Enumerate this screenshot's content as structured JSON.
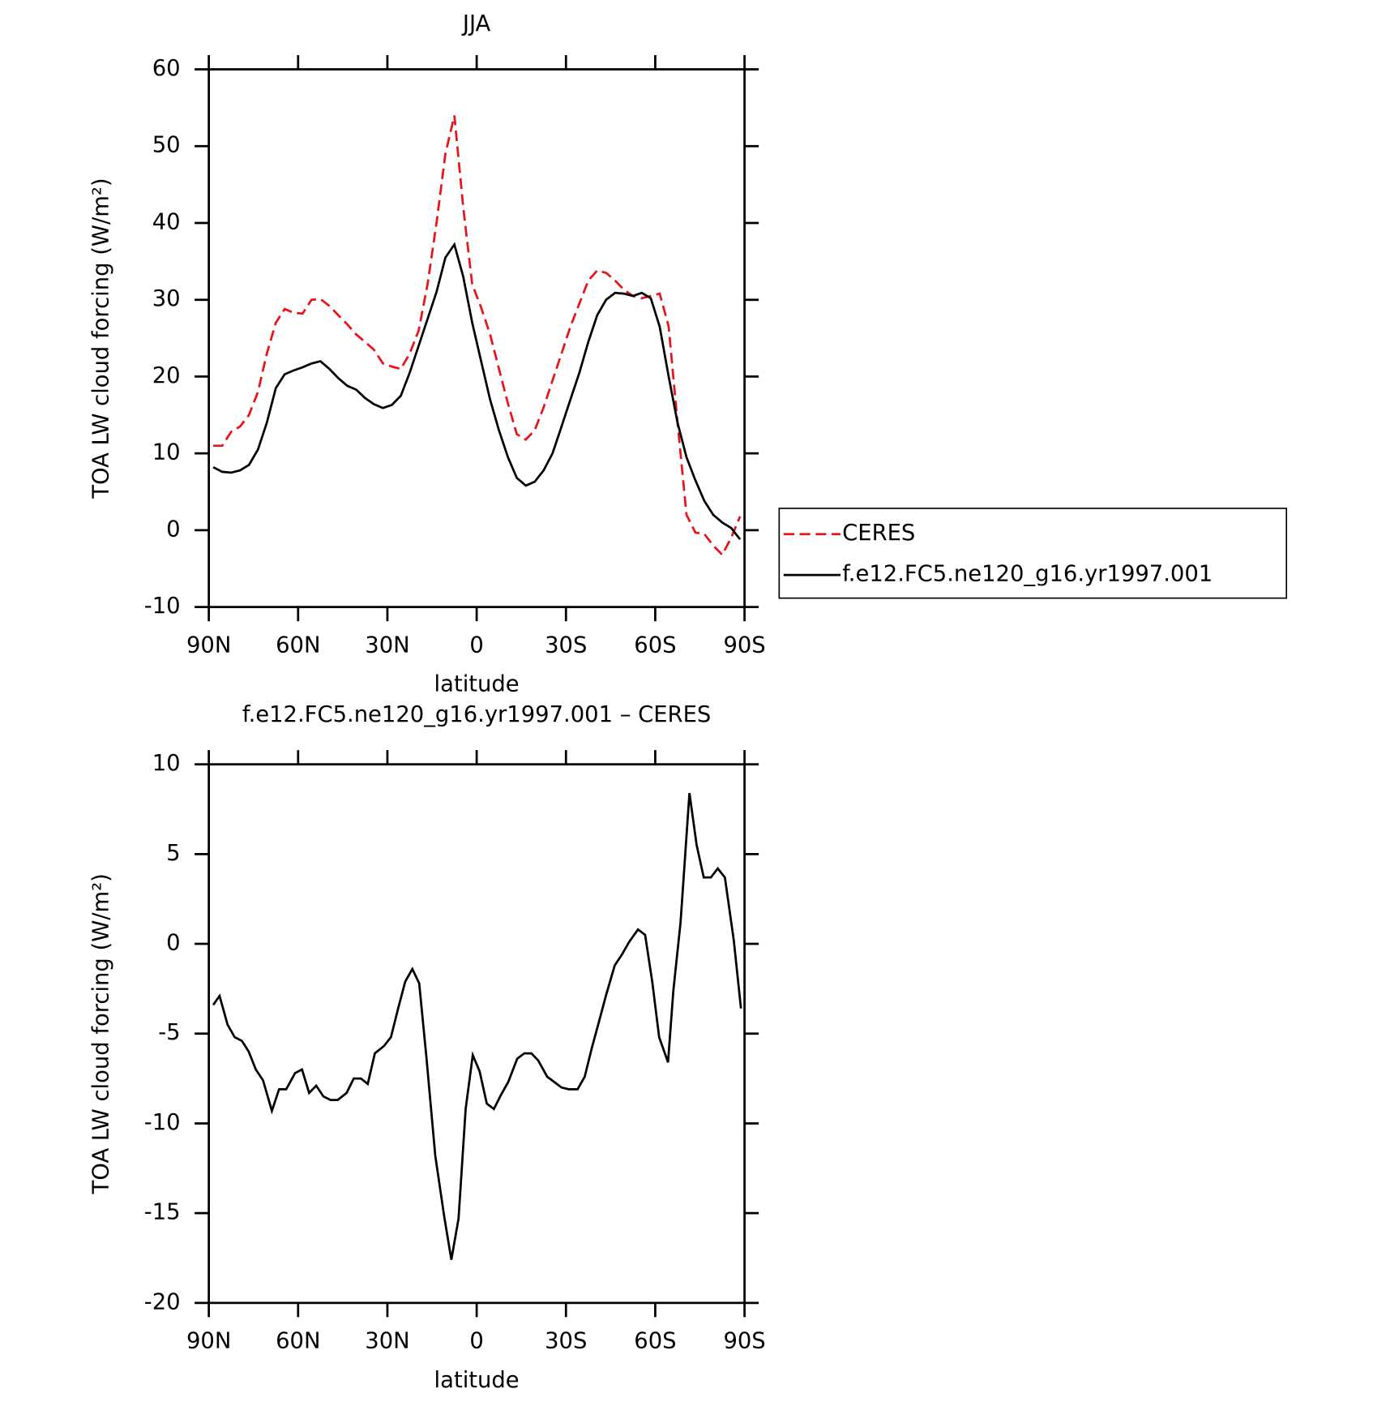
{
  "chart_data": [
    {
      "type": "line",
      "title": "JJA",
      "xlabel": "latitude",
      "ylabel": "TOA LW cloud forcing (W/m²)",
      "x": [
        88.5,
        85.5,
        82.5,
        79.5,
        76.5,
        73.5,
        70.5,
        67.5,
        64.5,
        61.5,
        58.5,
        55.5,
        52.5,
        49.5,
        46.5,
        43.5,
        40.5,
        37.5,
        34.5,
        31.5,
        28.5,
        25.5,
        22.5,
        19.5,
        16.5,
        13.5,
        10.5,
        7.5,
        4.5,
        1.5,
        -1.5,
        -4.5,
        -7.5,
        -10.5,
        -13.5,
        -16.5,
        -19.5,
        -22.5,
        -25.5,
        -28.5,
        -31.5,
        -34.5,
        -37.5,
        -40.5,
        -43.5,
        -46.5,
        -49.5,
        -52.5,
        -55.5,
        -58.5,
        -61.5,
        -64.5,
        -67.5,
        -70.5,
        -73.5,
        -76.5,
        -79.5,
        -82.5,
        -85.5,
        -88.5
      ],
      "series": [
        {
          "name": "CERES",
          "color": "#e8141a",
          "linestyle": "dashed",
          "values": [
            11,
            11,
            12.8,
            13.5,
            15,
            18,
            23,
            27,
            28.8,
            28.3,
            28.2,
            30,
            30.1,
            29.2,
            28,
            26.8,
            25.5,
            24.5,
            23.5,
            21.7,
            21.3,
            21,
            23,
            26,
            32,
            40,
            49,
            54,
            42,
            32,
            29,
            25.5,
            21,
            16.5,
            12.5,
            11.8,
            13,
            16,
            19.5,
            23,
            26.5,
            29.5,
            32.5,
            33.8,
            33.5,
            32.5,
            31.3,
            30.5,
            30.2,
            30.5,
            30.8,
            26.5,
            14,
            2,
            -0.3,
            -0.5,
            -2,
            -3.2,
            -1,
            1.8
          ]
        },
        {
          "name": "f.e12.FC5.ne120_g16.yr1997.001",
          "color": "#000000",
          "linestyle": "solid",
          "values": [
            8.2,
            7.6,
            7.5,
            7.8,
            8.5,
            10.5,
            14,
            18.5,
            20.3,
            20.8,
            21.2,
            21.7,
            22,
            21,
            19.8,
            18.8,
            18.3,
            17.2,
            16.4,
            15.9,
            16.3,
            17.5,
            20.5,
            24,
            27.5,
            31,
            35.5,
            37.2,
            33,
            27,
            22,
            17,
            13,
            9.5,
            6.8,
            5.8,
            6.3,
            7.8,
            10,
            13.5,
            17,
            20.5,
            24.5,
            28,
            30,
            30.9,
            30.8,
            30.5,
            30.9,
            30.2,
            26.5,
            20,
            14,
            9.5,
            6.5,
            3.8,
            2,
            1,
            0.3,
            -1.2
          ]
        }
      ],
      "xlim": [
        90,
        -90
      ],
      "xticks": [
        {
          "value": 90,
          "label": "90N"
        },
        {
          "value": 60,
          "label": "60N"
        },
        {
          "value": 30,
          "label": "30N"
        },
        0,
        {
          "value": -30,
          "label": "30S"
        },
        {
          "value": -60,
          "label": "60S"
        },
        {
          "value": -90,
          "label": "90S"
        }
      ],
      "ylim": [
        -10,
        60
      ],
      "yticks": [
        -10,
        0,
        10,
        20,
        30,
        40,
        50,
        60
      ],
      "legend": "right"
    },
    {
      "type": "line",
      "title": "f.e12.FC5.ne120_g16.yr1997.001 – CERES",
      "xlabel": "latitude",
      "ylabel": "TOA LW cloud forcing (W/m²)",
      "x": [
        88.5,
        86.4,
        83.7,
        81.3,
        78.9,
        76.6,
        74.2,
        71.8,
        68.8,
        66.4,
        64.0,
        61.0,
        58.7,
        56.3,
        53.9,
        51.5,
        49.1,
        46.7,
        43.7,
        41.3,
        38.9,
        36.6,
        34.2,
        31.2,
        28.8,
        26.4,
        24.0,
        21.6,
        19.3,
        16.9,
        13.9,
        10.9,
        8.5,
        6.1,
        3.7,
        1.3,
        -1.0,
        -3.4,
        -5.8,
        -8.2,
        -10.6,
        -13.6,
        -16.0,
        -18.4,
        -20.7,
        -23.7,
        -26.1,
        -28.5,
        -30.9,
        -33.9,
        -36.3,
        -38.7,
        -41.0,
        -43.4,
        -46.4,
        -48.8,
        -51.2,
        -54.2,
        -56.6,
        -59.0,
        -61.3,
        -64.3,
        -66.1,
        -68.5,
        -71.5,
        -73.9,
        -76.3,
        -78.7,
        -81.0,
        -83.4,
        -86.4,
        -88.8
      ],
      "values": [
        -3.4,
        -2.9,
        -4.5,
        -5.2,
        -5.4,
        -6,
        -7,
        -7.6,
        -9.3,
        -8.1,
        -8.1,
        -7.2,
        -7,
        -8.3,
        -7.9,
        -8.5,
        -8.7,
        -8.7,
        -8.3,
        -7.5,
        -7.5,
        -7.8,
        -6.1,
        -5.7,
        -5.2,
        -3.6,
        -2.1,
        -1.4,
        -2.2,
        -6.3,
        -11.8,
        -15.2,
        -17.6,
        -15.3,
        -9.2,
        -6.2,
        -7.1,
        -8.9,
        -9.2,
        -8.4,
        -7.7,
        -6.4,
        -6.1,
        -6.1,
        -6.5,
        -7.4,
        -7.7,
        -8,
        -8.1,
        -8.1,
        -7.4,
        -5.8,
        -4.4,
        -2.9,
        -1.2,
        -0.6,
        0.1,
        0.8,
        0.5,
        -2.1,
        -5.2,
        -6.6,
        -2.6,
        1.2,
        8.4,
        5.5,
        3.7,
        3.7,
        4.2,
        3.7,
        0.2,
        -3.6
      ],
      "color": "#000000",
      "linestyle": "solid",
      "xlim": [
        90,
        -90
      ],
      "xticks": [
        {
          "value": 90,
          "label": "90N"
        },
        {
          "value": 60,
          "label": "60N"
        },
        {
          "value": 30,
          "label": "30N"
        },
        0,
        {
          "value": -30,
          "label": "30S"
        },
        {
          "value": -60,
          "label": "60S"
        },
        {
          "value": -90,
          "label": "90S"
        }
      ],
      "ylim": [
        -20,
        10
      ],
      "yticks": [
        -20,
        -15,
        -10,
        -5,
        0,
        5,
        10
      ]
    }
  ]
}
